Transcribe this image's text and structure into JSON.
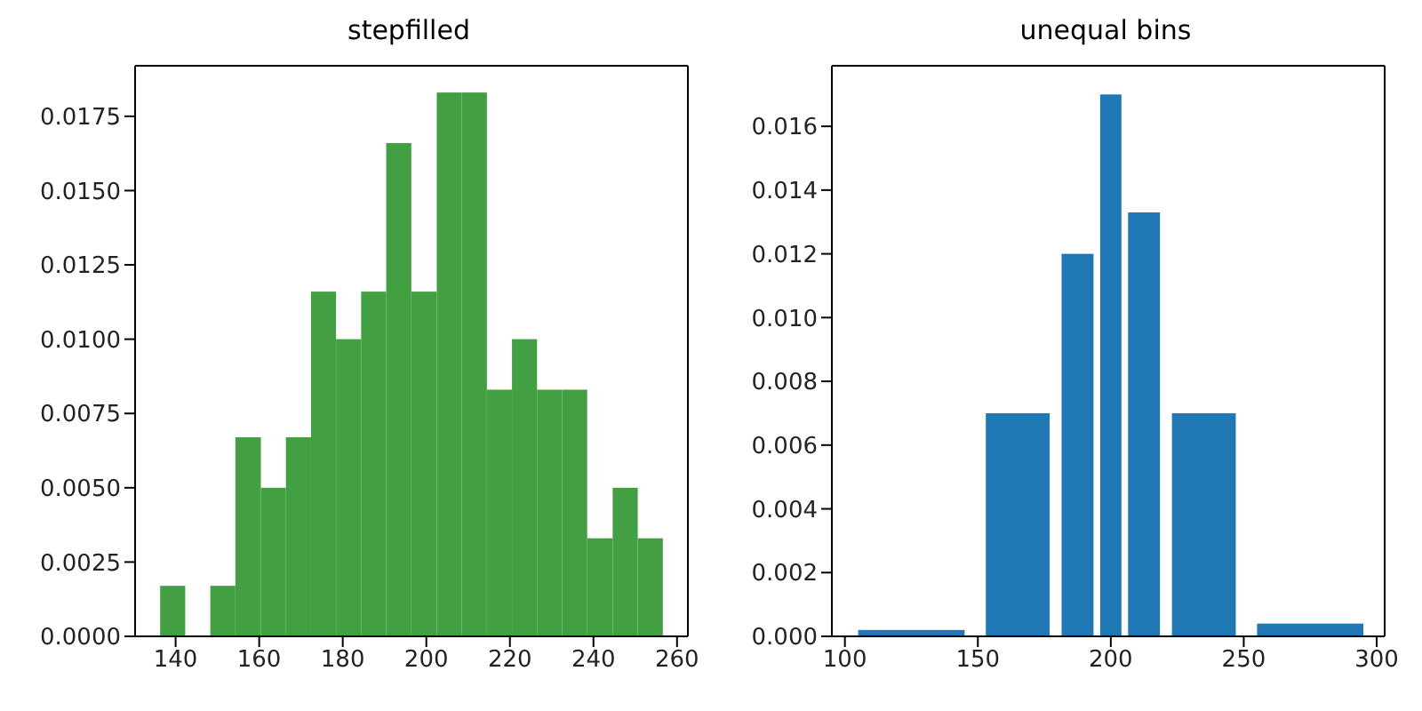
{
  "chart_data": [
    {
      "type": "histogram",
      "title": "stepfilled",
      "color": "#42a042",
      "bins": [
        136.3,
        142.3,
        148.3,
        154.3,
        160.4,
        166.4,
        172.4,
        178.4,
        184.4,
        190.4,
        196.4,
        202.5,
        208.5,
        214.5,
        220.5,
        226.5,
        232.5,
        238.5,
        244.6,
        250.6,
        256.6
      ],
      "values": [
        0.0017,
        0,
        0.0017,
        0.0067,
        0.005,
        0.0067,
        0.0116,
        0.01,
        0.0116,
        0.0166,
        0.0116,
        0.0183,
        0.0183,
        0.0083,
        0.01,
        0.0083,
        0.0083,
        0.0033,
        0.005,
        0.0033
      ],
      "xlim": [
        130.3,
        262.6
      ],
      "xticks": [
        140,
        160,
        180,
        200,
        220,
        240,
        260
      ],
      "ylim": [
        0,
        0.0192
      ],
      "yticks": [
        {
          "value": 0,
          "label": "0.0000"
        },
        {
          "value": 0.0025,
          "label": "0.0025"
        },
        {
          "value": 0.005,
          "label": "0.0050"
        },
        {
          "value": 0.0075,
          "label": "0.0075"
        },
        {
          "value": 0.01,
          "label": "0.0100"
        },
        {
          "value": 0.0125,
          "label": "0.0125"
        },
        {
          "value": 0.015,
          "label": "0.0150"
        },
        {
          "value": 0.0175,
          "label": "0.0175"
        }
      ],
      "grid": false,
      "legend": false
    },
    {
      "type": "histogram",
      "title": "unequal bins",
      "color": "#1f77b4",
      "bins": [
        100,
        150,
        180,
        195,
        205,
        220,
        250,
        300
      ],
      "values": [
        0.0002,
        0.007,
        0.012,
        0.017,
        0.0133,
        0.007,
        0.0004
      ],
      "xlim": [
        95.1,
        303
      ],
      "xticks": [
        100,
        150,
        200,
        250,
        300
      ],
      "ylim": [
        0,
        0.0179
      ],
      "yticks": [
        {
          "value": 0,
          "label": "0.000"
        },
        {
          "value": 0.002,
          "label": "0.002"
        },
        {
          "value": 0.004,
          "label": "0.004"
        },
        {
          "value": 0.006,
          "label": "0.006"
        },
        {
          "value": 0.008,
          "label": "0.008"
        },
        {
          "value": 0.01,
          "label": "0.010"
        },
        {
          "value": 0.012,
          "label": "0.012"
        },
        {
          "value": 0.014,
          "label": "0.014"
        },
        {
          "value": 0.016,
          "label": "0.016"
        }
      ],
      "grid": false,
      "legend": false
    }
  ]
}
